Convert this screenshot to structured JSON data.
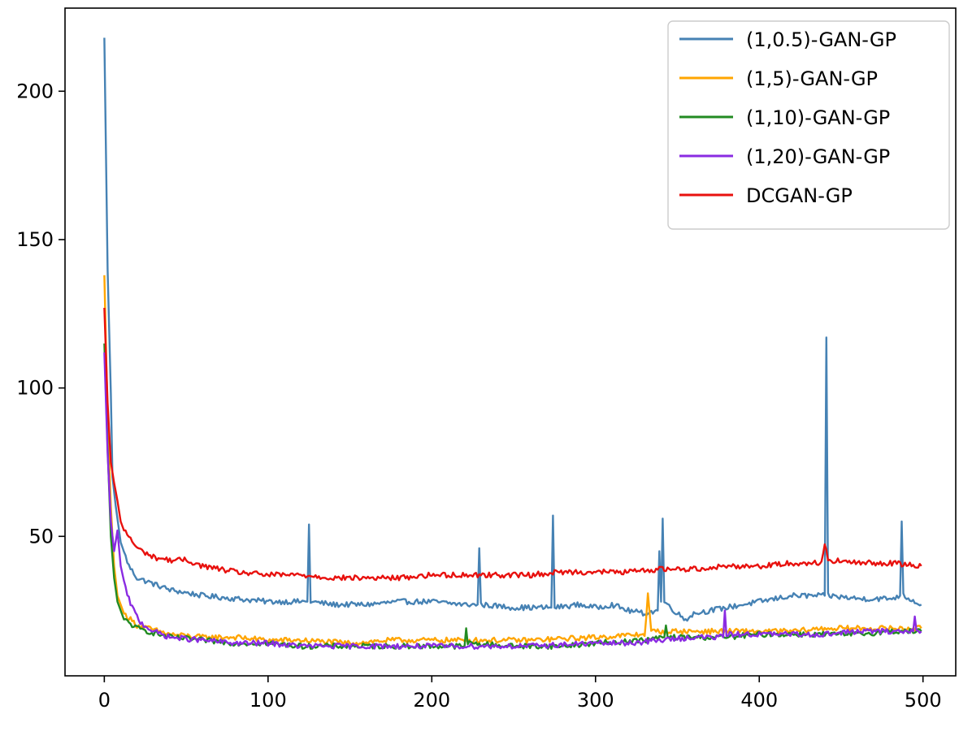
{
  "chart_data": {
    "type": "line",
    "title": "",
    "xlabel": "",
    "ylabel": "",
    "xlim": [
      -24,
      520
    ],
    "ylim": [
      3,
      228
    ],
    "x_ticks": [
      0,
      100,
      200,
      300,
      400,
      500
    ],
    "y_ticks": [
      50,
      100,
      150,
      200
    ],
    "grid": false,
    "legend_position": "top-right",
    "x_range_data": [
      0,
      499
    ],
    "series": [
      {
        "name": "(1,0.5)-GAN-GP",
        "color": "#4682b4",
        "keypoints": [
          [
            0,
            218
          ],
          [
            2,
            140
          ],
          [
            4,
            98
          ],
          [
            5,
            70
          ],
          [
            7,
            60
          ],
          [
            10,
            48
          ],
          [
            15,
            40
          ],
          [
            20,
            36
          ],
          [
            30,
            34
          ],
          [
            40,
            32
          ],
          [
            50,
            31
          ],
          [
            60,
            30
          ],
          [
            80,
            29
          ],
          [
            100,
            28
          ],
          [
            110,
            28
          ],
          [
            124,
            28
          ],
          [
            125,
            54
          ],
          [
            126,
            28
          ],
          [
            140,
            27
          ],
          [
            160,
            27
          ],
          [
            180,
            28
          ],
          [
            200,
            28
          ],
          [
            220,
            27
          ],
          [
            228,
            27
          ],
          [
            229,
            46
          ],
          [
            230,
            27
          ],
          [
            250,
            26
          ],
          [
            270,
            26
          ],
          [
            273,
            26
          ],
          [
            274,
            57
          ],
          [
            275,
            26
          ],
          [
            290,
            27
          ],
          [
            300,
            26
          ],
          [
            310,
            27
          ],
          [
            320,
            25
          ],
          [
            330,
            24
          ],
          [
            338,
            25
          ],
          [
            339,
            45
          ],
          [
            340,
            28
          ],
          [
            341,
            56
          ],
          [
            342,
            28
          ],
          [
            350,
            24
          ],
          [
            355,
            22
          ],
          [
            360,
            24
          ],
          [
            380,
            26
          ],
          [
            400,
            28
          ],
          [
            420,
            30
          ],
          [
            440,
            30
          ],
          [
            441,
            117
          ],
          [
            442,
            30
          ],
          [
            460,
            29
          ],
          [
            480,
            29
          ],
          [
            486,
            30
          ],
          [
            487,
            55
          ],
          [
            488,
            30
          ],
          [
            499,
            27
          ]
        ]
      },
      {
        "name": "(1,5)-GAN-GP",
        "color": "#ffa500",
        "keypoints": [
          [
            0,
            138
          ],
          [
            2,
            90
          ],
          [
            4,
            60
          ],
          [
            6,
            40
          ],
          [
            8,
            30
          ],
          [
            12,
            24
          ],
          [
            20,
            20
          ],
          [
            40,
            17
          ],
          [
            60,
            16
          ],
          [
            80,
            16
          ],
          [
            100,
            15
          ],
          [
            120,
            15
          ],
          [
            150,
            14
          ],
          [
            175,
            15
          ],
          [
            200,
            15
          ],
          [
            230,
            15
          ],
          [
            260,
            15
          ],
          [
            300,
            16
          ],
          [
            330,
            17
          ],
          [
            332,
            30
          ],
          [
            334,
            18
          ],
          [
            350,
            18
          ],
          [
            380,
            18
          ],
          [
            400,
            18
          ],
          [
            420,
            18
          ],
          [
            440,
            19
          ],
          [
            460,
            19
          ],
          [
            480,
            19
          ],
          [
            499,
            19
          ]
        ]
      },
      {
        "name": "(1,10)-GAN-GP",
        "color": "#228b22",
        "keypoints": [
          [
            0,
            115
          ],
          [
            2,
            80
          ],
          [
            4,
            50
          ],
          [
            6,
            36
          ],
          [
            8,
            28
          ],
          [
            12,
            22
          ],
          [
            20,
            19
          ],
          [
            40,
            16
          ],
          [
            60,
            15
          ],
          [
            80,
            14
          ],
          [
            100,
            14
          ],
          [
            120,
            13
          ],
          [
            150,
            13
          ],
          [
            180,
            13
          ],
          [
            200,
            13
          ],
          [
            220,
            13
          ],
          [
            221,
            19
          ],
          [
            222,
            14
          ],
          [
            250,
            13
          ],
          [
            280,
            13
          ],
          [
            300,
            14
          ],
          [
            330,
            15
          ],
          [
            342,
            16
          ],
          [
            343,
            20
          ],
          [
            344,
            16
          ],
          [
            360,
            16
          ],
          [
            380,
            16
          ],
          [
            400,
            17
          ],
          [
            420,
            17
          ],
          [
            440,
            17
          ],
          [
            460,
            17
          ],
          [
            480,
            18
          ],
          [
            499,
            18
          ]
        ]
      },
      {
        "name": "(1,20)-GAN-GP",
        "color": "#8a2be2",
        "keypoints": [
          [
            0,
            112
          ],
          [
            2,
            78
          ],
          [
            4,
            55
          ],
          [
            6,
            45
          ],
          [
            8,
            52
          ],
          [
            10,
            40
          ],
          [
            14,
            30
          ],
          [
            18,
            25
          ],
          [
            22,
            21
          ],
          [
            30,
            18
          ],
          [
            40,
            16
          ],
          [
            60,
            15
          ],
          [
            80,
            14
          ],
          [
            100,
            14
          ],
          [
            120,
            13
          ],
          [
            150,
            13
          ],
          [
            180,
            13
          ],
          [
            200,
            13
          ],
          [
            230,
            13
          ],
          [
            260,
            13
          ],
          [
            300,
            14
          ],
          [
            320,
            14
          ],
          [
            340,
            15
          ],
          [
            360,
            16
          ],
          [
            378,
            16
          ],
          [
            379,
            25
          ],
          [
            380,
            17
          ],
          [
            400,
            17
          ],
          [
            420,
            17
          ],
          [
            440,
            17
          ],
          [
            460,
            18
          ],
          [
            480,
            18
          ],
          [
            494,
            18
          ],
          [
            495,
            23
          ],
          [
            496,
            18
          ],
          [
            499,
            18
          ]
        ]
      },
      {
        "name": "DCGAN-GP",
        "color": "#e8110e",
        "keypoints": [
          [
            0,
            127
          ],
          [
            2,
            95
          ],
          [
            4,
            75
          ],
          [
            6,
            68
          ],
          [
            8,
            62
          ],
          [
            10,
            55
          ],
          [
            12,
            52
          ],
          [
            15,
            50
          ],
          [
            20,
            46
          ],
          [
            30,
            43
          ],
          [
            40,
            42
          ],
          [
            50,
            42
          ],
          [
            60,
            40
          ],
          [
            80,
            38
          ],
          [
            100,
            37
          ],
          [
            120,
            37
          ],
          [
            140,
            36
          ],
          [
            160,
            36
          ],
          [
            180,
            36
          ],
          [
            200,
            37
          ],
          [
            220,
            37
          ],
          [
            240,
            37
          ],
          [
            260,
            37
          ],
          [
            280,
            38
          ],
          [
            300,
            38
          ],
          [
            320,
            38
          ],
          [
            340,
            39
          ],
          [
            360,
            39
          ],
          [
            380,
            40
          ],
          [
            400,
            40
          ],
          [
            420,
            41
          ],
          [
            438,
            41
          ],
          [
            440,
            48
          ],
          [
            442,
            42
          ],
          [
            460,
            41
          ],
          [
            480,
            41
          ],
          [
            499,
            40
          ]
        ]
      }
    ]
  }
}
